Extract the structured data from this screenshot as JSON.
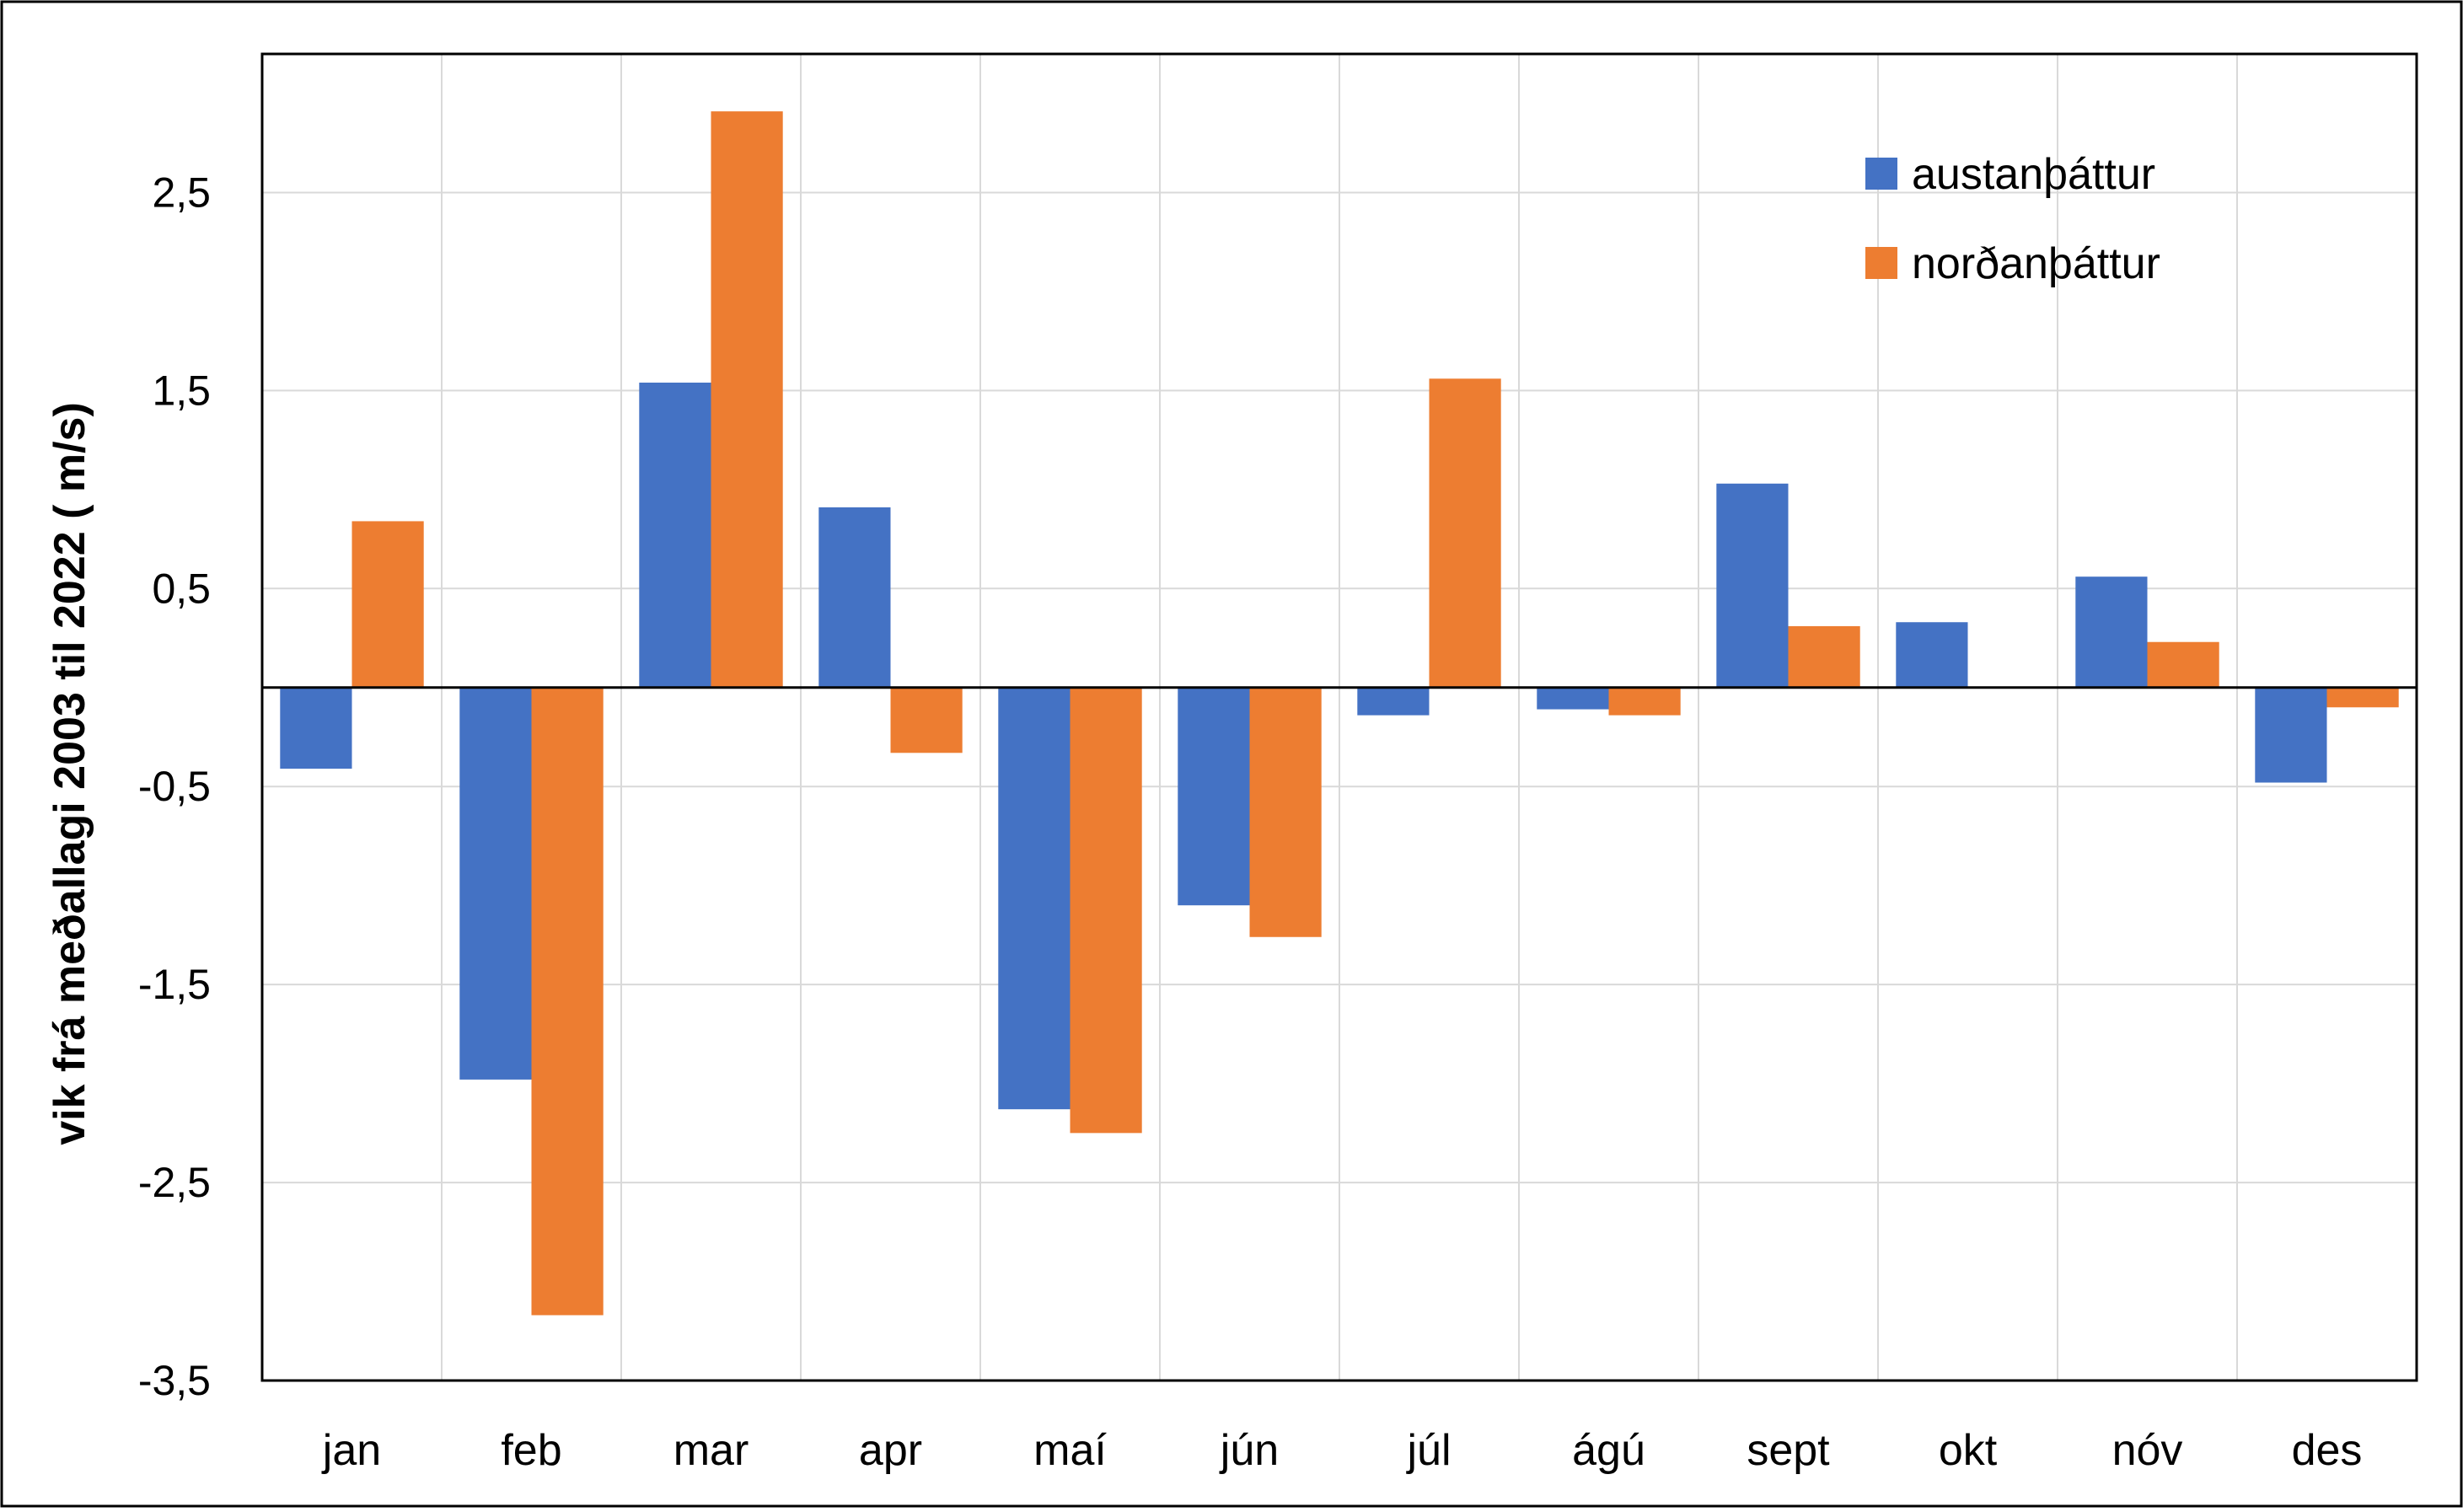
{
  "chart_data": {
    "type": "bar",
    "ylabel": "vik frá meðallagi 2003 til 2022 ( m/s)",
    "xlabel": "",
    "categories": [
      "jan",
      "feb",
      "mar",
      "apr",
      "maí",
      "jún",
      "júl",
      "ágú",
      "sept",
      "okt",
      "nóv",
      "des"
    ],
    "series": [
      {
        "name": "austanþáttur",
        "color": "#4472C4",
        "values": [
          -0.41,
          -1.98,
          1.54,
          0.91,
          -2.13,
          -1.1,
          -0.14,
          -0.11,
          1.03,
          0.33,
          0.56,
          -0.48
        ]
      },
      {
        "name": "norðanþáttur",
        "color": "#ED7D31",
        "values": [
          0.84,
          -3.17,
          2.91,
          -0.33,
          -2.25,
          -1.26,
          1.56,
          -0.14,
          0.31,
          0.0,
          0.23,
          -0.1
        ]
      }
    ],
    "ylim": [
      -3.5,
      3.2
    ],
    "yticks": [
      2.5,
      1.5,
      0.5,
      -0.5,
      -1.5,
      -2.5,
      -3.5
    ],
    "ytick_labels": [
      "2,5",
      "1,5",
      "0,5",
      "-0,5",
      "-1,5",
      "-2,5",
      "-3,5"
    ],
    "grid": true,
    "legend_position": "top-right"
  }
}
